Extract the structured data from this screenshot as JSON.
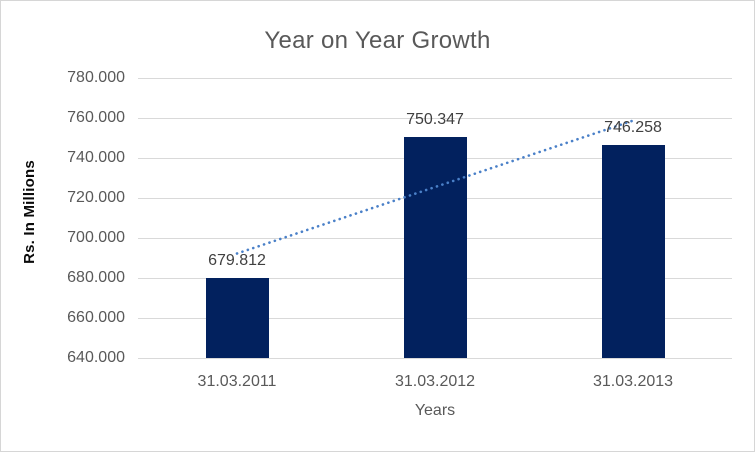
{
  "chart_data": {
    "type": "bar",
    "title": "Year on Year Growth",
    "categories": [
      "31.03.2011",
      "31.03.2012",
      "31.03.2013"
    ],
    "values": [
      679.812,
      750.347,
      746.258
    ],
    "data_labels": [
      "679.812",
      "750.347",
      "746.258"
    ],
    "xlabel": "Years",
    "ylabel": "Rs. In Millions",
    "ylim": [
      640,
      780
    ],
    "ytick_step": 20,
    "yticks": [
      "780.000",
      "760.000",
      "740.000",
      "720.000",
      "700.000",
      "680.000",
      "660.000",
      "640.000"
    ],
    "grid": true,
    "legend": "none",
    "bar_color": "#02215e",
    "gridline_color": "#d9d9d9",
    "label_color": "#404040",
    "axis_text_color": "#595959",
    "trendline": {
      "type": "linear",
      "style": "dotted",
      "color": "#4a80c8"
    }
  }
}
